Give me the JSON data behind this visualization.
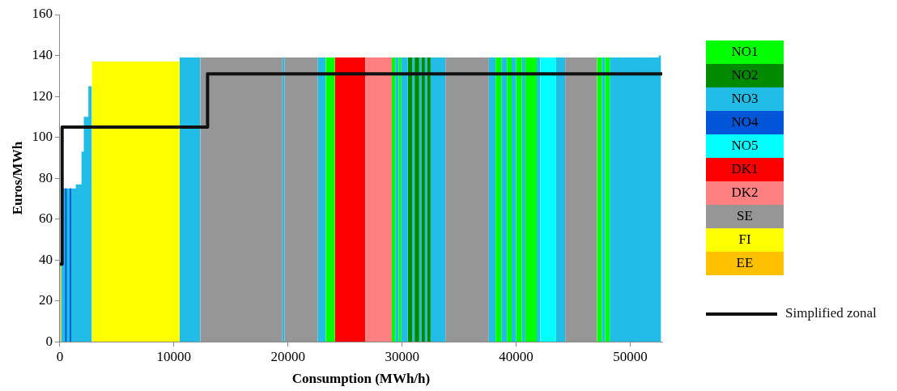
{
  "chart_data": {
    "type": "area",
    "xlabel": "Consumption (MWh/h)",
    "ylabel": "Euros/MWh",
    "xlim": [
      0,
      52800
    ],
    "ylim": [
      0,
      160
    ],
    "xticks": [
      0,
      10000,
      20000,
      30000,
      40000,
      50000
    ],
    "yticks": [
      0,
      20,
      40,
      60,
      80,
      100,
      120,
      140,
      160
    ],
    "grid": false,
    "legend": "right",
    "series": [
      {
        "name": "NO1",
        "color": "#00ff00",
        "x": [
          23300,
          23300,
          24100,
          24100,
          29100,
          29100,
          29400,
          29400,
          29700,
          29700,
          29900,
          29900,
          38200,
          38200,
          38700,
          38700,
          39200,
          39200,
          39600,
          39600,
          40000,
          40000,
          40500,
          40500,
          40800,
          40800,
          41800,
          41800,
          47100,
          47100,
          47500,
          47500,
          47800,
          47800,
          48200,
          48200
        ],
        "values": [
          0,
          139,
          139,
          0,
          0,
          139,
          139,
          0,
          0,
          139,
          139,
          0,
          0,
          139,
          139,
          0,
          0,
          139,
          139,
          0,
          0,
          139,
          139,
          0,
          0,
          139,
          139,
          0,
          0,
          139,
          139,
          0,
          0,
          139,
          139,
          0
        ]
      },
      {
        "name": "NO2",
        "color": "#008a00",
        "x": [
          30500,
          30500,
          30900,
          30900,
          31100,
          31100,
          31500,
          31500,
          31700,
          31700,
          32000,
          32000,
          32200,
          32200,
          32500,
          32500
        ],
        "values": [
          0,
          139,
          139,
          0,
          0,
          139,
          139,
          0,
          0,
          139,
          139,
          0,
          0,
          139,
          139,
          0
        ]
      },
      {
        "name": "NO3",
        "color": "#22bde6",
        "x": [
          100,
          100,
          200,
          200,
          1400,
          1400,
          1900,
          1900,
          2100,
          2100,
          2500,
          2500,
          2800,
          2800,
          10500,
          10500,
          12300,
          12300,
          19500,
          19500,
          19700,
          19700,
          22600,
          22600,
          23300,
          23300,
          29400,
          29400,
          29700,
          29700,
          29900,
          29900,
          30500,
          30500,
          30900,
          30900,
          31100,
          31100,
          31500,
          31500,
          31700,
          31700,
          32000,
          32000,
          32200,
          32200,
          32500,
          32500,
          33800,
          33800,
          37600,
          37600,
          38200,
          38200,
          38700,
          38700,
          39200,
          39200,
          39600,
          39600,
          40000,
          40000,
          40500,
          40500,
          40800,
          40800,
          41800,
          41800,
          42100,
          42100,
          43500,
          43500,
          44300,
          44300,
          47500,
          47500,
          47800,
          47800,
          48200,
          48200,
          52500,
          52500,
          52700,
          52700
        ],
        "values": [
          0,
          38,
          38,
          75,
          75,
          77,
          77,
          93,
          93,
          110,
          110,
          125,
          125,
          0,
          0,
          139,
          139,
          0,
          0,
          139,
          139,
          0,
          0,
          139,
          139,
          0,
          0,
          139,
          139,
          0,
          0,
          139,
          139,
          0,
          0,
          139,
          139,
          0,
          0,
          139,
          139,
          0,
          0,
          139,
          139,
          0,
          0,
          139,
          139,
          0,
          0,
          139,
          139,
          0,
          0,
          139,
          139,
          0,
          0,
          139,
          139,
          0,
          0,
          139,
          139,
          0,
          0,
          139,
          139,
          0,
          0,
          139,
          139,
          0,
          0,
          139,
          139,
          0,
          0,
          139,
          139,
          140,
          140,
          0
        ]
      },
      {
        "name": "NO4",
        "color": "#0055d8",
        "x": [
          450,
          450,
          600,
          600,
          870,
          870,
          1000,
          1000
        ],
        "values": [
          0,
          75,
          75,
          0,
          0,
          75,
          75,
          0
        ]
      },
      {
        "name": "NO5",
        "color": "#00ffff",
        "x": [
          42100,
          42100,
          43500,
          43500
        ],
        "values": [
          0,
          139,
          139,
          0
        ]
      },
      {
        "name": "DK1",
        "color": "#ff0000",
        "x": [
          24100,
          24100,
          26800,
          26800
        ],
        "values": [
          0,
          139,
          139,
          0
        ]
      },
      {
        "name": "DK2",
        "color": "#ff8080",
        "x": [
          26800,
          26800,
          29100,
          29100
        ],
        "values": [
          0,
          139,
          139,
          0
        ]
      },
      {
        "name": "SE",
        "color": "#969696",
        "x": [
          12300,
          12300,
          19500,
          19500,
          19700,
          19700,
          22600,
          22600,
          33800,
          33800,
          37600,
          37600,
          44300,
          44300,
          47100,
          47100
        ],
        "values": [
          0,
          139,
          139,
          0,
          0,
          139,
          139,
          0,
          0,
          139,
          139,
          0,
          0,
          139,
          139,
          0
        ]
      },
      {
        "name": "FI",
        "color": "#ffff00",
        "x": [
          2800,
          2800,
          10500,
          10500
        ],
        "values": [
          0,
          137,
          137,
          0
        ]
      },
      {
        "name": "EE",
        "color": "#ffc000",
        "x": [
          0,
          0,
          100,
          100
        ],
        "values": [
          0,
          38,
          38,
          0
        ]
      },
      {
        "name": "Simplified zonal",
        "type": "line",
        "color": "#111111",
        "x": [
          0,
          200,
          200,
          12950,
          12950,
          52800
        ],
        "values": [
          38,
          38,
          105,
          105,
          131,
          131
        ]
      }
    ]
  }
}
